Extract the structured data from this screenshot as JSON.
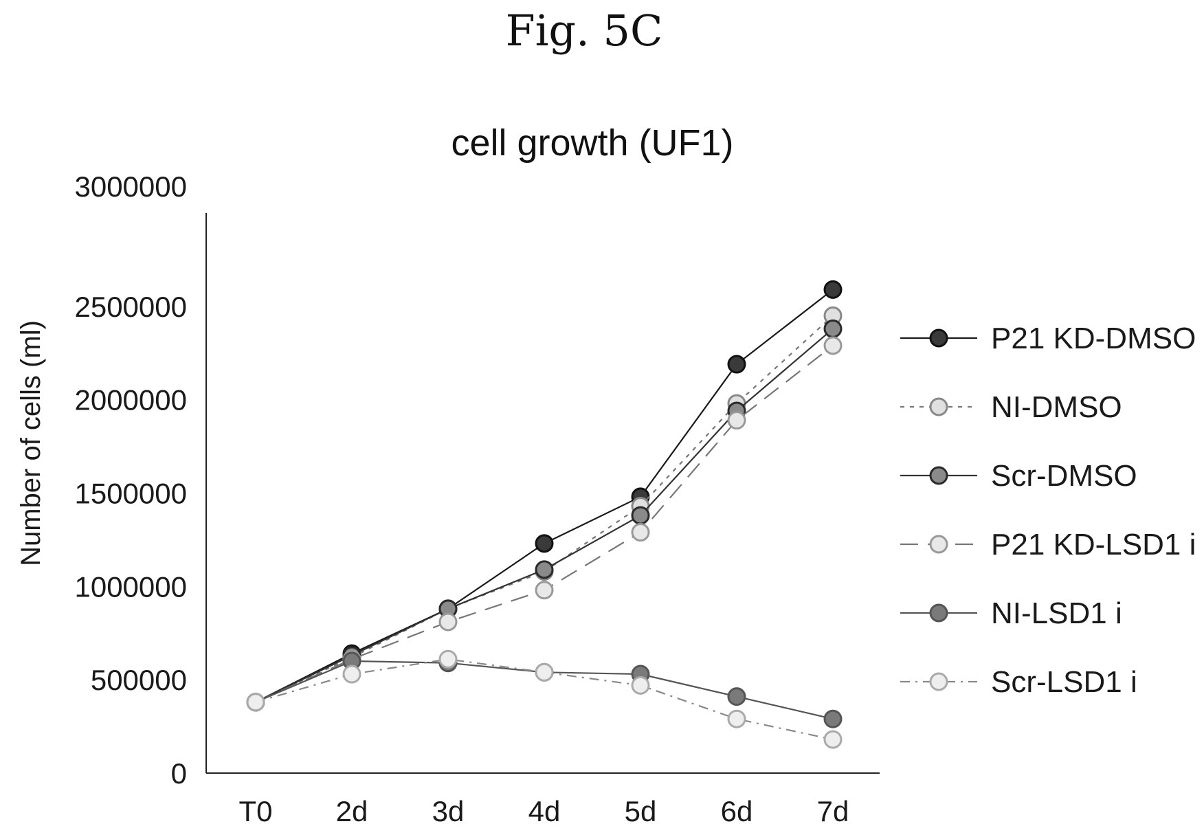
{
  "figure_label": "Fig. 5C",
  "chart_data": {
    "type": "line",
    "title": "cell growth (UF1)",
    "xlabel": "",
    "ylabel": "Number of cells (ml)",
    "categories": [
      "T0",
      "2d",
      "3d",
      "4d",
      "5d",
      "6d",
      "7d"
    ],
    "ylim": [
      0,
      3000000
    ],
    "yticks": [
      0,
      500000,
      1000000,
      1500000,
      2000000,
      2500000,
      3000000
    ],
    "ytick_labels": [
      "0",
      "500000",
      "1000000",
      "1500000",
      "2000000",
      "2500000",
      "3000000"
    ],
    "grid": false,
    "legend_position": "right",
    "series": [
      {
        "name": "P21 KD-DMSO",
        "values": [
          380000,
          640000,
          880000,
          1230000,
          1480000,
          2190000,
          2590000
        ],
        "line_color": "#1a1a1a",
        "marker_fill": "#3a3a3a",
        "marker_stroke": "#111111",
        "dash": "none"
      },
      {
        "name": "NI-DMSO",
        "values": [
          380000,
          620000,
          880000,
          1080000,
          1430000,
          1980000,
          2450000
        ],
        "line_color": "#777777",
        "marker_fill": "#e0e0e0",
        "marker_stroke": "#888888",
        "dash": "dotted"
      },
      {
        "name": "Scr-DMSO",
        "values": [
          380000,
          630000,
          880000,
          1090000,
          1380000,
          1940000,
          2380000
        ],
        "line_color": "#333333",
        "marker_fill": "#8a8a8a",
        "marker_stroke": "#2a2a2a",
        "dash": "none"
      },
      {
        "name": "P21 KD-LSD1 i",
        "values": [
          380000,
          610000,
          810000,
          980000,
          1290000,
          1890000,
          2290000
        ],
        "line_color": "#777777",
        "marker_fill": "#e8e8e8",
        "marker_stroke": "#999999",
        "dash": "dashed"
      },
      {
        "name": "NI-LSD1 i",
        "values": [
          380000,
          600000,
          590000,
          540000,
          530000,
          410000,
          290000
        ],
        "line_color": "#555555",
        "marker_fill": "#7a7a7a",
        "marker_stroke": "#555555",
        "dash": "none"
      },
      {
        "name": "Scr-LSD1 i",
        "values": [
          380000,
          530000,
          610000,
          540000,
          470000,
          290000,
          180000
        ],
        "line_color": "#888888",
        "marker_fill": "#eeeeee",
        "marker_stroke": "#aaaaaa",
        "dash": "dashdot"
      }
    ]
  }
}
